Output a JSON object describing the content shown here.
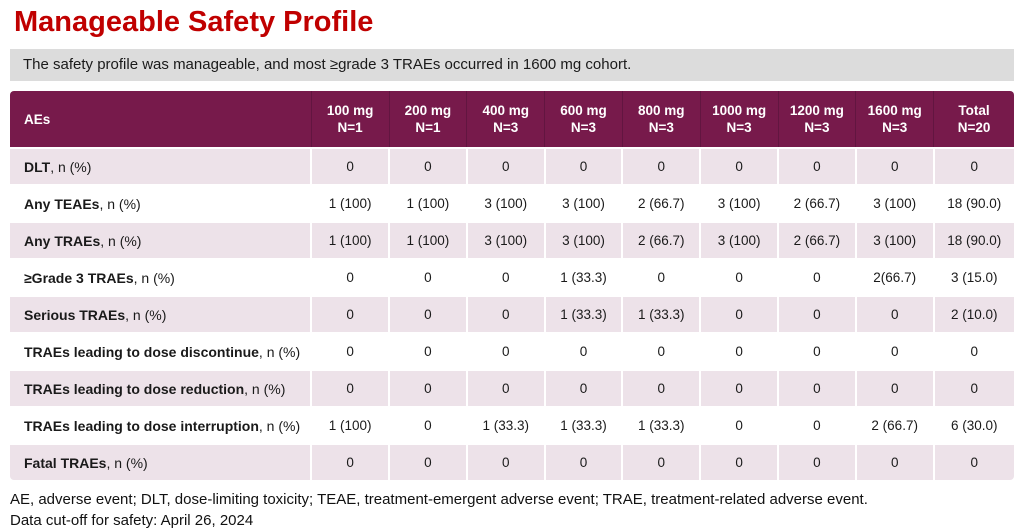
{
  "title": "Manageable Safety Profile",
  "subtitle": "The safety profile was manageable, and most ≥grade 3 TRAEs occurred in 1600 mg cohort.",
  "colors": {
    "title_red": "#C00000",
    "header_maroon": "#771A4B",
    "row_pink": "#EDE2E9",
    "subtitle_gray": "#DCDCDC"
  },
  "table": {
    "header": {
      "first": "AEs",
      "columns": [
        {
          "dose": "100 mg",
          "n": "N=1"
        },
        {
          "dose": "200 mg",
          "n": "N=1"
        },
        {
          "dose": "400 mg",
          "n": "N=3"
        },
        {
          "dose": "600 mg",
          "n": "N=3"
        },
        {
          "dose": "800 mg",
          "n": "N=3"
        },
        {
          "dose": "1000 mg",
          "n": "N=3"
        },
        {
          "dose": "1200 mg",
          "n": "N=3"
        },
        {
          "dose": "1600 mg",
          "n": "N=3"
        },
        {
          "dose": "Total",
          "n": "N=20"
        }
      ]
    },
    "rows": [
      {
        "label": "DLT",
        "label_suffix": ", n (%)",
        "values": [
          "0",
          "0",
          "0",
          "0",
          "0",
          "0",
          "0",
          "0",
          "0"
        ]
      },
      {
        "label": "Any TEAEs",
        "label_suffix": ", n (%)",
        "values": [
          "1 (100)",
          "1 (100)",
          "3 (100)",
          "3 (100)",
          "2 (66.7)",
          "3 (100)",
          "2 (66.7)",
          "3 (100)",
          "18 (90.0)"
        ]
      },
      {
        "label": "Any TRAEs",
        "label_suffix": ", n (%)",
        "values": [
          "1 (100)",
          "1 (100)",
          "3 (100)",
          "3 (100)",
          "2 (66.7)",
          "3 (100)",
          "2 (66.7)",
          "3 (100)",
          "18 (90.0)"
        ]
      },
      {
        "label": "≥Grade 3 TRAEs",
        "label_suffix": ", n (%)",
        "values": [
          "0",
          "0",
          "0",
          "1 (33.3)",
          "0",
          "0",
          "0",
          "2(66.7)",
          "3 (15.0)"
        ]
      },
      {
        "label": "Serious TRAEs",
        "label_suffix": ", n (%)",
        "values": [
          "0",
          "0",
          "0",
          "1 (33.3)",
          "1 (33.3)",
          "0",
          "0",
          "0",
          "2 (10.0)"
        ]
      },
      {
        "label": "TRAEs leading to dose discontinue",
        "label_suffix": ", n (%)",
        "values": [
          "0",
          "0",
          "0",
          "0",
          "0",
          "0",
          "0",
          "0",
          "0"
        ]
      },
      {
        "label": "TRAEs leading to dose reduction",
        "label_suffix": ", n (%)",
        "values": [
          "0",
          "0",
          "0",
          "0",
          "0",
          "0",
          "0",
          "0",
          "0"
        ]
      },
      {
        "label": "TRAEs leading to dose interruption",
        "label_suffix": ", n (%)",
        "values": [
          "1 (100)",
          "0",
          "1 (33.3)",
          "1 (33.3)",
          "1 (33.3)",
          "0",
          "0",
          "2 (66.7)",
          "6 (30.0)"
        ]
      },
      {
        "label": "Fatal TRAEs",
        "label_suffix": ", n (%)",
        "values": [
          "0",
          "0",
          "0",
          "0",
          "0",
          "0",
          "0",
          "0",
          "0"
        ]
      }
    ]
  },
  "footnotes": [
    "AE, adverse event; DLT, dose-limiting toxicity; TEAE, treatment-emergent adverse event; TRAE, treatment-related adverse event.",
    "Data cut-off for safety: April 26, 2024"
  ]
}
